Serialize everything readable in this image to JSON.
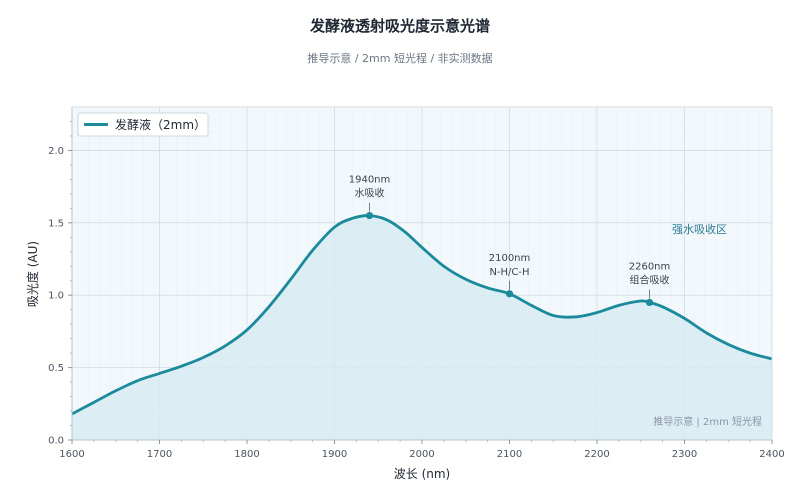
{
  "chart_data": {
    "type": "line",
    "title": "发酵液透射吸光度示意光谱",
    "subtitle": "推导示意 / 2mm 短光程 / 非实测数据",
    "xlabel": "波长 (nm)",
    "ylabel": "吸光度 (AU)",
    "xlim": [
      1600,
      2400
    ],
    "ylim": [
      0,
      2.3
    ],
    "xticks": [
      1600,
      1700,
      1800,
      1900,
      2000,
      2100,
      2200,
      2300,
      2400
    ],
    "yticks": [
      0.0,
      0.5,
      1.0,
      1.5,
      2.0
    ],
    "xtick_labels": [
      "1600",
      "1700",
      "1800",
      "1900",
      "2000",
      "2100",
      "2200",
      "2300",
      "2400"
    ],
    "ytick_labels": [
      "0.0",
      "0.5",
      "1.0",
      "1.5",
      "2.0"
    ],
    "grid": true,
    "legend_position": "top-left",
    "series": [
      {
        "name": "发酵液（2mm）",
        "color": "#1a8a9c",
        "fill_color": "#d6ebf3",
        "x": [
          1600,
          1625,
          1650,
          1675,
          1700,
          1725,
          1750,
          1775,
          1800,
          1825,
          1850,
          1875,
          1900,
          1920,
          1940,
          1960,
          1980,
          2000,
          2025,
          2050,
          2075,
          2100,
          2125,
          2150,
          2175,
          2200,
          2225,
          2250,
          2260,
          2275,
          2300,
          2325,
          2350,
          2375,
          2400
        ],
        "y": [
          0.18,
          0.26,
          0.34,
          0.41,
          0.46,
          0.51,
          0.57,
          0.65,
          0.76,
          0.92,
          1.11,
          1.31,
          1.47,
          1.53,
          1.55,
          1.52,
          1.44,
          1.33,
          1.2,
          1.11,
          1.05,
          1.01,
          0.93,
          0.86,
          0.85,
          0.88,
          0.93,
          0.96,
          0.95,
          0.92,
          0.84,
          0.74,
          0.66,
          0.6,
          0.56
        ]
      }
    ],
    "annotations": [
      {
        "x": 1940,
        "y": 1.55,
        "line1": "1940nm",
        "line2": "水吸收"
      },
      {
        "x": 2100,
        "y": 1.01,
        "line1": "2100nm",
        "line2": "N-H/C-H"
      },
      {
        "x": 2260,
        "y": 0.95,
        "line1": "2260nm",
        "line2": "组合吸收"
      }
    ],
    "region_label": {
      "x": 2340,
      "y": 1.43,
      "text": "强水吸收区"
    },
    "watermark": "推导示意 | 2mm 短光程"
  }
}
